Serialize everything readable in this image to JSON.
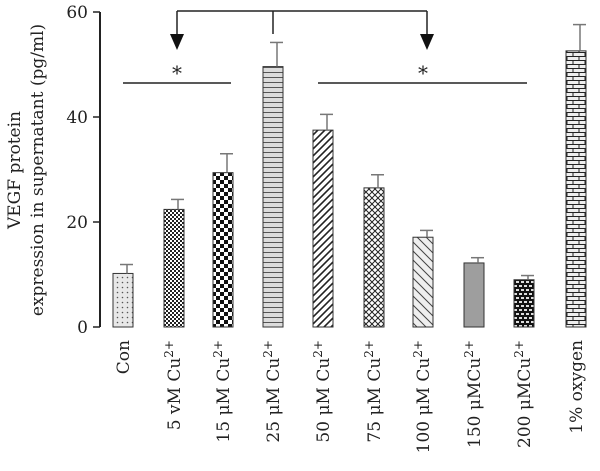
{
  "chart_data": {
    "type": "bar",
    "ylabel_line1": "VEGF protein",
    "ylabel_line2": "expression in supernatant (pg/ml)",
    "ylim": [
      0,
      60
    ],
    "yticks": [
      "0",
      "20",
      "40",
      "60"
    ],
    "categories": [
      "Con",
      "5 vM Cu2+",
      "15 μM Cu2+",
      "25 μM Cu2+",
      "50 μM Cu2+",
      "75 μM Cu2+",
      "100 μM Cu2+",
      "150 μMCu2+",
      "200 μMCu2+",
      "1% oxygen"
    ],
    "values": [
      10.2,
      22.4,
      29.4,
      49.6,
      37.5,
      26.5,
      17.1,
      12.2,
      9.0,
      52.6
    ],
    "errors": [
      1.7,
      1.9,
      3.6,
      4.6,
      3.0,
      2.5,
      1.3,
      1.0,
      0.8,
      5.0
    ],
    "significance": [
      {
        "label": "*",
        "from": "Con",
        "to": "15 μM Cu2+"
      },
      {
        "label": "*",
        "from": "50 μM Cu2+",
        "to": "200 μMCu2+"
      }
    ],
    "reference_bracket": {
      "from": "25 μM Cu2+",
      "to": [
        "5 vM Cu2+",
        "100 μM Cu2+"
      ]
    },
    "grid": false,
    "legend": "none"
  }
}
